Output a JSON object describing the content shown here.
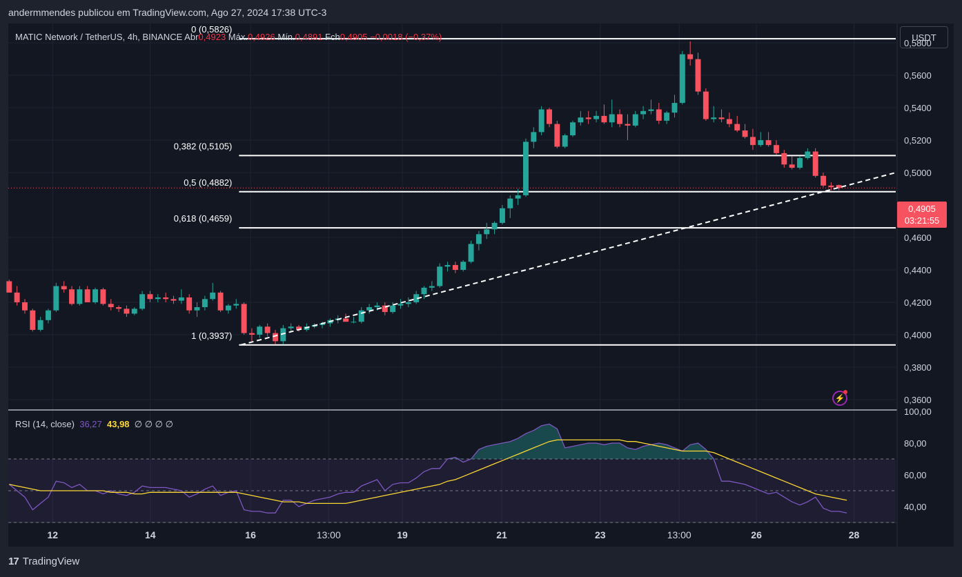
{
  "header": {
    "publisher": "andermmendes publicou em TradingView.com, Ago 27, 2024 17:38 UTC-3"
  },
  "legend": {
    "symbol": "MATIC Network / TetherUS, 4h, BINANCE",
    "open_label": "Abr",
    "open": "0,4923",
    "high_label": "Máx.",
    "high": "0,4926",
    "low_label": "Mín.",
    "low": "0,4891",
    "close_label": "Fch",
    "close": "0,4905",
    "change": "−0,0018 (−0,37%)"
  },
  "currency_button": "USDT",
  "price_tag": {
    "price": "0,4905",
    "countdown": "03:21:55"
  },
  "rsi_legend": {
    "label": "RSI (14, close)",
    "rsi": "36,27",
    "ma": "43,98",
    "extras": "∅ ∅ ∅ ∅"
  },
  "footer": {
    "logo": "17",
    "brand": "TradingView"
  },
  "colors": {
    "up": "#26a69a",
    "down": "#f7525f",
    "rsi": "#7e57c2",
    "rsi_ma": "#fdd835",
    "background": "#131722"
  },
  "icons": {
    "alert": "lightning-icon"
  },
  "chart_data": [
    {
      "type": "candlestick",
      "price_ticks": [
        "0,5800",
        "0,5600",
        "0,5400",
        "0,5200",
        "0,5000",
        "0,4600",
        "0,4400",
        "0,4200",
        "0,4000",
        "0,3800",
        "0,3600"
      ],
      "ylim": [
        0.354,
        0.592
      ],
      "x_ticks": [
        {
          "label": "12",
          "x": 0.05
        },
        {
          "label": "14",
          "x": 0.16
        },
        {
          "label": "16",
          "x": 0.273
        },
        {
          "label": "13:00",
          "x": 0.361
        },
        {
          "label": "19",
          "x": 0.444
        },
        {
          "label": "21",
          "x": 0.556
        },
        {
          "label": "23",
          "x": 0.667
        },
        {
          "label": "13:00",
          "x": 0.756
        },
        {
          "label": "26",
          "x": 0.843
        },
        {
          "label": "28",
          "x": 0.953
        }
      ],
      "fib_levels": [
        {
          "label": "0 (0,5826)",
          "value": 0.5826
        },
        {
          "label": "0,382 (0,5105)",
          "value": 0.5105
        },
        {
          "label": "0,5 (0,4882)",
          "value": 0.4882
        },
        {
          "label": "0,618 (0,4659)",
          "value": 0.4659
        },
        {
          "label": "1 (0,3937)",
          "value": 0.3937
        }
      ],
      "trendline": [
        [
          0.262,
          0.3937
        ],
        [
          1.0,
          0.5
        ]
      ],
      "last_price": 0.4905,
      "candles": [
        [
          0.433,
          0.434,
          0.426,
          0.426
        ],
        [
          0.426,
          0.43,
          0.418,
          0.42
        ],
        [
          0.42,
          0.422,
          0.413,
          0.415
        ],
        [
          0.415,
          0.416,
          0.402,
          0.403
        ],
        [
          0.403,
          0.411,
          0.402,
          0.409
        ],
        [
          0.409,
          0.416,
          0.407,
          0.415
        ],
        [
          0.415,
          0.432,
          0.414,
          0.43
        ],
        [
          0.43,
          0.433,
          0.426,
          0.428
        ],
        [
          0.428,
          0.43,
          0.418,
          0.419
        ],
        [
          0.419,
          0.43,
          0.418,
          0.428
        ],
        [
          0.428,
          0.43,
          0.42,
          0.42
        ],
        [
          0.42,
          0.429,
          0.419,
          0.428
        ],
        [
          0.428,
          0.429,
          0.418,
          0.419
        ],
        [
          0.419,
          0.422,
          0.415,
          0.417
        ],
        [
          0.417,
          0.418,
          0.414,
          0.416
        ],
        [
          0.416,
          0.418,
          0.411,
          0.413
        ],
        [
          0.413,
          0.417,
          0.412,
          0.416
        ],
        [
          0.416,
          0.427,
          0.415,
          0.425
        ],
        [
          0.425,
          0.427,
          0.42,
          0.422
        ],
        [
          0.422,
          0.425,
          0.42,
          0.423
        ],
        [
          0.423,
          0.426,
          0.42,
          0.422
        ],
        [
          0.422,
          0.424,
          0.419,
          0.421
        ],
        [
          0.421,
          0.428,
          0.419,
          0.423
        ],
        [
          0.423,
          0.425,
          0.413,
          0.415
        ],
        [
          0.415,
          0.42,
          0.411,
          0.417
        ],
        [
          0.417,
          0.424,
          0.415,
          0.422
        ],
        [
          0.422,
          0.432,
          0.421,
          0.426
        ],
        [
          0.426,
          0.427,
          0.414,
          0.415
        ],
        [
          0.415,
          0.419,
          0.413,
          0.418
        ],
        [
          0.418,
          0.422,
          0.416,
          0.419
        ],
        [
          0.419,
          0.42,
          0.4,
          0.401
        ],
        [
          0.401,
          0.404,
          0.396,
          0.4
        ],
        [
          0.4,
          0.406,
          0.398,
          0.405
        ],
        [
          0.405,
          0.407,
          0.399,
          0.401
        ],
        [
          0.401,
          0.403,
          0.394,
          0.396
        ],
        [
          0.396,
          0.406,
          0.394,
          0.404
        ],
        [
          0.404,
          0.407,
          0.402,
          0.405
        ],
        [
          0.405,
          0.406,
          0.402,
          0.403
        ],
        [
          0.403,
          0.407,
          0.402,
          0.405
        ],
        [
          0.405,
          0.407,
          0.404,
          0.406
        ],
        [
          0.406,
          0.408,
          0.404,
          0.407
        ],
        [
          0.407,
          0.41,
          0.405,
          0.409
        ],
        [
          0.409,
          0.412,
          0.407,
          0.41
        ],
        [
          0.41,
          0.413,
          0.408,
          0.408
        ],
        [
          0.408,
          0.411,
          0.407,
          0.408
        ],
        [
          0.408,
          0.417,
          0.407,
          0.415
        ],
        [
          0.415,
          0.419,
          0.413,
          0.417
        ],
        [
          0.417,
          0.42,
          0.415,
          0.418
        ],
        [
          0.418,
          0.42,
          0.412,
          0.414
        ],
        [
          0.414,
          0.42,
          0.413,
          0.418
        ],
        [
          0.418,
          0.422,
          0.416,
          0.419
        ],
        [
          0.419,
          0.423,
          0.417,
          0.42
        ],
        [
          0.42,
          0.427,
          0.419,
          0.425
        ],
        [
          0.425,
          0.43,
          0.422,
          0.429
        ],
        [
          0.429,
          0.433,
          0.427,
          0.43
        ],
        [
          0.43,
          0.444,
          0.429,
          0.442
        ],
        [
          0.442,
          0.445,
          0.439,
          0.443
        ],
        [
          0.443,
          0.445,
          0.438,
          0.44
        ],
        [
          0.44,
          0.446,
          0.439,
          0.445
        ],
        [
          0.445,
          0.458,
          0.444,
          0.456
        ],
        [
          0.456,
          0.464,
          0.452,
          0.462
        ],
        [
          0.462,
          0.469,
          0.459,
          0.465
        ],
        [
          0.465,
          0.47,
          0.462,
          0.469
        ],
        [
          0.469,
          0.48,
          0.468,
          0.478
        ],
        [
          0.478,
          0.486,
          0.472,
          0.484
        ],
        [
          0.484,
          0.49,
          0.48,
          0.486
        ],
        [
          0.486,
          0.521,
          0.485,
          0.519
        ],
        [
          0.519,
          0.528,
          0.515,
          0.525
        ],
        [
          0.525,
          0.541,
          0.523,
          0.539
        ],
        [
          0.539,
          0.54,
          0.528,
          0.53
        ],
        [
          0.53,
          0.532,
          0.515,
          0.516
        ],
        [
          0.516,
          0.524,
          0.515,
          0.523
        ],
        [
          0.523,
          0.532,
          0.522,
          0.531
        ],
        [
          0.531,
          0.538,
          0.529,
          0.534
        ],
        [
          0.534,
          0.538,
          0.53,
          0.533
        ],
        [
          0.533,
          0.538,
          0.531,
          0.535
        ],
        [
          0.535,
          0.542,
          0.53,
          0.531
        ],
        [
          0.531,
          0.545,
          0.528,
          0.536
        ],
        [
          0.536,
          0.539,
          0.528,
          0.53
        ],
        [
          0.53,
          0.536,
          0.52,
          0.529
        ],
        [
          0.529,
          0.538,
          0.528,
          0.536
        ],
        [
          0.536,
          0.541,
          0.533,
          0.538
        ],
        [
          0.538,
          0.545,
          0.536,
          0.539
        ],
        [
          0.539,
          0.543,
          0.53,
          0.532
        ],
        [
          0.532,
          0.538,
          0.53,
          0.537
        ],
        [
          0.537,
          0.548,
          0.534,
          0.543
        ],
        [
          0.543,
          0.575,
          0.542,
          0.573
        ],
        [
          0.573,
          0.581,
          0.566,
          0.57
        ],
        [
          0.57,
          0.574,
          0.548,
          0.55
        ],
        [
          0.55,
          0.552,
          0.532,
          0.533
        ],
        [
          0.533,
          0.541,
          0.531,
          0.534
        ],
        [
          0.534,
          0.539,
          0.531,
          0.533
        ],
        [
          0.533,
          0.537,
          0.528,
          0.53
        ],
        [
          0.53,
          0.535,
          0.525,
          0.526
        ],
        [
          0.526,
          0.53,
          0.521,
          0.522
        ],
        [
          0.522,
          0.527,
          0.514,
          0.517
        ],
        [
          0.517,
          0.525,
          0.516,
          0.52
        ],
        [
          0.52,
          0.525,
          0.516,
          0.517
        ],
        [
          0.517,
          0.52,
          0.511,
          0.512
        ],
        [
          0.512,
          0.514,
          0.503,
          0.505
        ],
        [
          0.505,
          0.51,
          0.502,
          0.503
        ],
        [
          0.503,
          0.51,
          0.502,
          0.509
        ],
        [
          0.509,
          0.515,
          0.508,
          0.513
        ],
        [
          0.513,
          0.515,
          0.497,
          0.498
        ],
        [
          0.498,
          0.5,
          0.491,
          0.492
        ],
        [
          0.492,
          0.494,
          0.489,
          0.491
        ],
        [
          0.4923,
          0.4926,
          0.4891,
          0.4905
        ]
      ]
    },
    {
      "type": "line",
      "name": "RSI (14, close)",
      "y_ticks": [
        "100,00",
        "80,00",
        "60,00",
        "40,00"
      ],
      "ylim": [
        30,
        100
      ],
      "bands": [
        30,
        50,
        70
      ],
      "series": [
        {
          "name": "RSI",
          "values": [
            54,
            50,
            46,
            38,
            42,
            46,
            56,
            55,
            52,
            54,
            50,
            50,
            48,
            50,
            48,
            47,
            49,
            53,
            52,
            52,
            52,
            51,
            50,
            46,
            48,
            51,
            53,
            47,
            49,
            50,
            38,
            37,
            37,
            36,
            36,
            44,
            44,
            40,
            42,
            44,
            45,
            46,
            48,
            49,
            49,
            53,
            55,
            57,
            50,
            54,
            55,
            55,
            58,
            62,
            64,
            64,
            70,
            71,
            68,
            70,
            76,
            78,
            79,
            80,
            81,
            83,
            86,
            88,
            91,
            92,
            89,
            77,
            78,
            79,
            80,
            80,
            79,
            80,
            80,
            77,
            76,
            78,
            79,
            80,
            79,
            77,
            75,
            79,
            80,
            76,
            70,
            56,
            56,
            55,
            54,
            52,
            50,
            48,
            49,
            46,
            43,
            41,
            43,
            46,
            39,
            37,
            37,
            36
          ]
        },
        {
          "name": "MA",
          "values": [
            54,
            53,
            52,
            51,
            50,
            50,
            50,
            50,
            50,
            50,
            50,
            50,
            50,
            49,
            49,
            49,
            48,
            48,
            49,
            49,
            49,
            49,
            49,
            49,
            49,
            49,
            49,
            49,
            49,
            49,
            48,
            47,
            46,
            45,
            44,
            43,
            43,
            43,
            42,
            42,
            42,
            42,
            42,
            42,
            43,
            44,
            45,
            46,
            47,
            48,
            49,
            50,
            51,
            52,
            53,
            54,
            56,
            57,
            59,
            61,
            63,
            65,
            67,
            69,
            71,
            73,
            75,
            77,
            79,
            81,
            82,
            82,
            82,
            82,
            82,
            82,
            82,
            82,
            82,
            81,
            81,
            80,
            79,
            78,
            77,
            76,
            75,
            75,
            75,
            75,
            74,
            72,
            70,
            68,
            66,
            64,
            62,
            60,
            58,
            56,
            54,
            52,
            50,
            48,
            47,
            46,
            45,
            44
          ]
        }
      ]
    }
  ]
}
